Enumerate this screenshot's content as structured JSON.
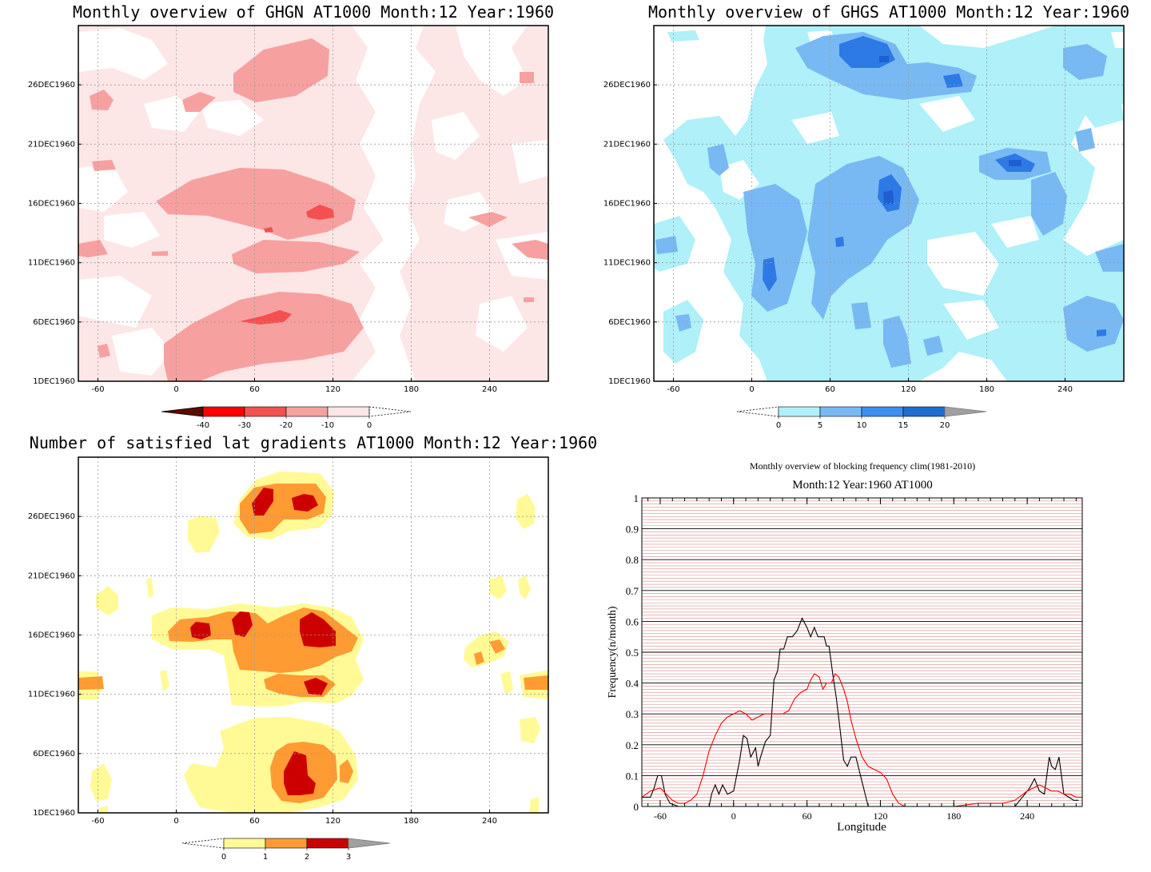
{
  "panels": {
    "ghgn": {
      "title": "Monthly overview of GHGN AT1000 Month:12 Year:1960",
      "x_ticks": [
        "-60",
        "0",
        "60",
        "120",
        "180",
        "240"
      ],
      "y_ticks": [
        "1DEC1960",
        "6DEC1960",
        "11DEC1960",
        "16DEC1960",
        "21DEC1960",
        "26DEC1960"
      ],
      "colorbar": {
        "labels": [
          "-40",
          "-30",
          "-20",
          "-10",
          "0"
        ],
        "colors": [
          "#5a0c00",
          "#ff0000",
          "#f45050",
          "#f7a0a0",
          "#fde6e6"
        ]
      },
      "colors": {
        "light": "#fde6e6",
        "mid": "#f7a0a0",
        "strong": "#f45050"
      }
    },
    "ghgs": {
      "title": "Monthly overview of GHGS AT1000 Month:12 Year:1960",
      "x_ticks": [
        "-60",
        "0",
        "60",
        "120",
        "180",
        "240"
      ],
      "y_ticks": [
        "1DEC1960",
        "6DEC1960",
        "11DEC1960",
        "16DEC1960",
        "21DEC1960",
        "26DEC1960"
      ],
      "colorbar": {
        "labels": [
          "0",
          "5",
          "10",
          "15",
          "20"
        ],
        "colors": [
          "#aff0f9",
          "#78b9f3",
          "#3c8ff0",
          "#1e6ed2",
          "#a0a0a0"
        ]
      },
      "colors": {
        "light": "#aff0f9",
        "mid": "#78b9f3",
        "strong": "#2d7ae6"
      }
    },
    "grad": {
      "title": "Number of satisfied lat gradients AT1000 Month:12 Year:1960",
      "x_ticks": [
        "-60",
        "0",
        "60",
        "120",
        "180",
        "240"
      ],
      "y_ticks": [
        "1DEC1960",
        "6DEC1960",
        "11DEC1960",
        "16DEC1960",
        "21DEC1960",
        "26DEC1960"
      ],
      "colorbar": {
        "labels": [
          "0",
          "1",
          "2",
          "3"
        ],
        "colors": [
          "#fffa96",
          "#ff9b32",
          "#cd0000",
          "#a0a0a0"
        ]
      },
      "colors": {
        "c1": "#fffa96",
        "c2": "#ff9b32",
        "c3": "#cd0000"
      }
    }
  },
  "chart_data": {
    "type": "line",
    "title": "Monthly overview of blocking frequency clim(1981-2010)",
    "subtitle": "Month:12 Year:1960  AT1000",
    "xlabel": "Longitude",
    "ylabel": "Frequency(n/month)",
    "xlim": [
      -75,
      285
    ],
    "ylim": [
      0,
      1
    ],
    "x_ticks": [
      "-60",
      "0",
      "60",
      "120",
      "180",
      "240"
    ],
    "y_ticks": [
      "0",
      "0.1",
      "0.2",
      "0.3",
      "0.4",
      "0.5",
      "0.6",
      "0.7",
      "0.8",
      "0.9",
      "1"
    ],
    "grid": true,
    "series": [
      {
        "color": "#000000",
        "x": [
          -75,
          -68,
          -65,
          -62,
          -59,
          -56,
          -52,
          -45,
          -30,
          -20,
          -18,
          -15,
          -12,
          -9,
          -5,
          0,
          5,
          8,
          11,
          14,
          18,
          20,
          22,
          26,
          30,
          33,
          36,
          38,
          41,
          44,
          48,
          52,
          56,
          60,
          63,
          66,
          69,
          72,
          74,
          76,
          78,
          81,
          84,
          87,
          90,
          93,
          96,
          100,
          105,
          110,
          113,
          117,
          120,
          124,
          127,
          130,
          133,
          136,
          140,
          150,
          180,
          200,
          210,
          220,
          226,
          230,
          234,
          238,
          242,
          246,
          250,
          254,
          258,
          260,
          263,
          266,
          270,
          274,
          278,
          282
        ],
        "y": [
          0.03,
          0.03,
          0.06,
          0.1,
          0.1,
          0.04,
          0.01,
          0.0,
          0.0,
          0.0,
          0.04,
          0.07,
          0.04,
          0.07,
          0.04,
          0.05,
          0.15,
          0.23,
          0.22,
          0.16,
          0.19,
          0.13,
          0.16,
          0.21,
          0.23,
          0.41,
          0.44,
          0.51,
          0.51,
          0.55,
          0.55,
          0.57,
          0.61,
          0.58,
          0.55,
          0.58,
          0.55,
          0.55,
          0.55,
          0.52,
          0.52,
          0.43,
          0.35,
          0.25,
          0.15,
          0.13,
          0.16,
          0.16,
          0.08,
          0.0,
          0.0,
          0.0,
          0.0,
          0.0,
          0.0,
          0.0,
          0.0,
          0.0,
          0.0,
          0.0,
          0.0,
          0.0,
          0.0,
          0.0,
          0.0,
          0.0,
          0.02,
          0.04,
          0.06,
          0.09,
          0.05,
          0.04,
          0.16,
          0.13,
          0.12,
          0.16,
          0.04,
          0.03,
          0.02,
          0.02
        ]
      },
      {
        "color": "#ff0000",
        "x": [
          -75,
          -68,
          -60,
          -55,
          -50,
          -45,
          -40,
          -35,
          -30,
          -25,
          -20,
          -15,
          -10,
          -5,
          0,
          5,
          10,
          15,
          20,
          25,
          30,
          35,
          40,
          45,
          50,
          55,
          60,
          63,
          66,
          70,
          73,
          76,
          80,
          83,
          86,
          90,
          93,
          96,
          100,
          105,
          110,
          115,
          120,
          125,
          130,
          135,
          140,
          150,
          160,
          180,
          200,
          220,
          230,
          240,
          250,
          255,
          260,
          265,
          270,
          275,
          280,
          285
        ],
        "y": [
          0.03,
          0.05,
          0.06,
          0.04,
          0.02,
          0.01,
          0.01,
          0.02,
          0.04,
          0.1,
          0.18,
          0.23,
          0.27,
          0.29,
          0.3,
          0.31,
          0.3,
          0.28,
          0.29,
          0.3,
          0.3,
          0.3,
          0.3,
          0.31,
          0.35,
          0.37,
          0.38,
          0.41,
          0.43,
          0.42,
          0.38,
          0.4,
          0.4,
          0.43,
          0.42,
          0.38,
          0.34,
          0.28,
          0.22,
          0.16,
          0.13,
          0.12,
          0.11,
          0.09,
          0.04,
          0.01,
          0.0,
          0.0,
          0.0,
          0.0,
          0.01,
          0.01,
          0.02,
          0.05,
          0.07,
          0.06,
          0.05,
          0.05,
          0.04,
          0.04,
          0.03,
          0.03
        ]
      }
    ]
  }
}
